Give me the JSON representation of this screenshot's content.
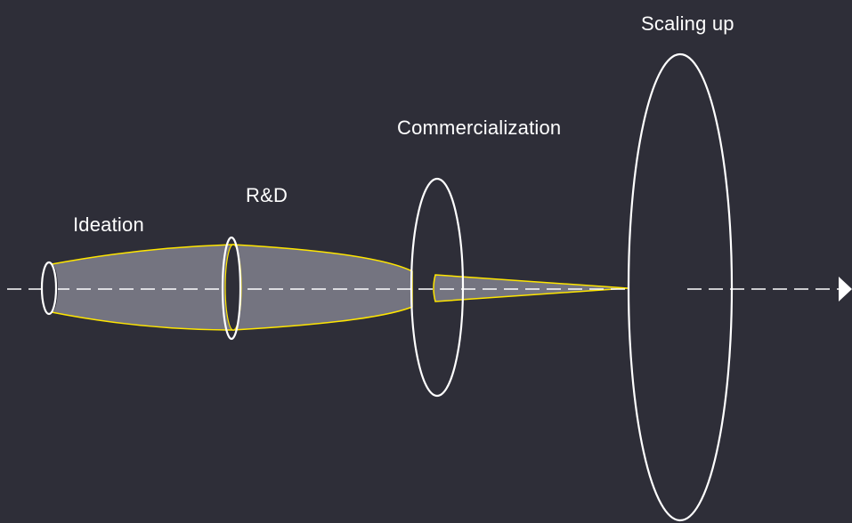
{
  "stages": [
    {
      "id": "ideation",
      "label": "Ideation"
    },
    {
      "id": "rnd",
      "label": "R&D"
    },
    {
      "id": "commercialization",
      "label": "Commercialization"
    },
    {
      "id": "scaling-up",
      "label": "Scaling up"
    }
  ],
  "colors": {
    "background": "#2e2e38",
    "text": "#ffffff",
    "ring_stroke": "#ffffff",
    "funnel_fill": "#747480",
    "funnel_stroke": "#ffe600",
    "inner_disc": "#2e2e38",
    "axis": "#ffffff"
  }
}
